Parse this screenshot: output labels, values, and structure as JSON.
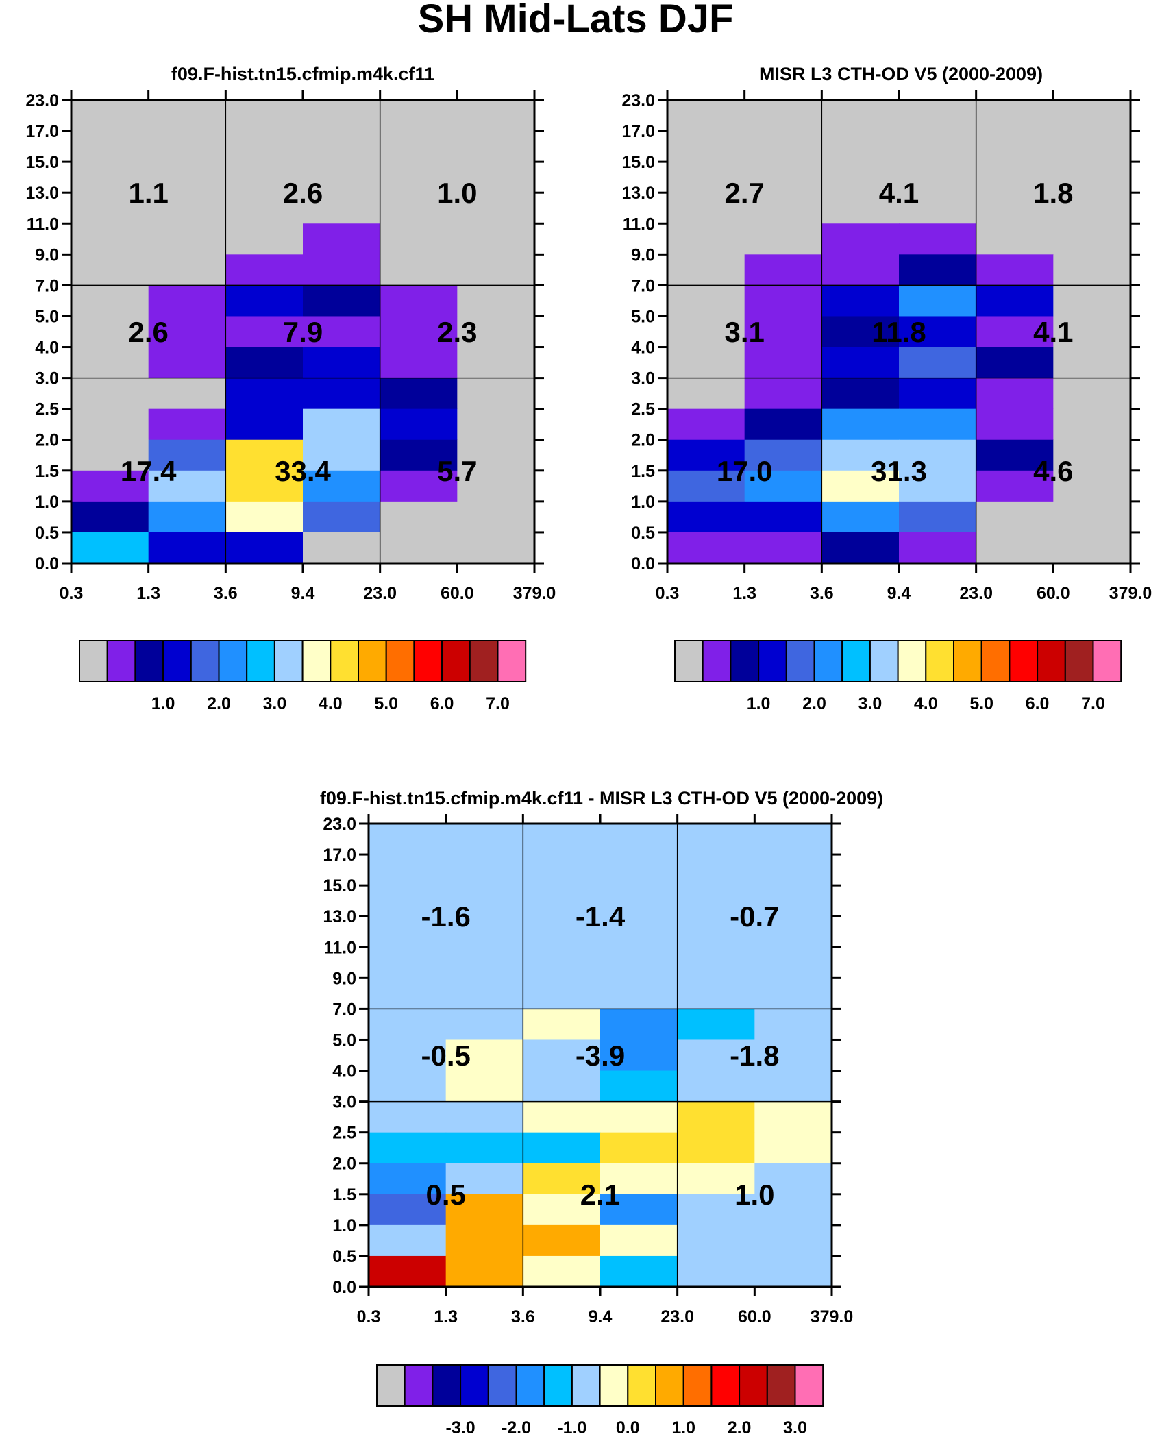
{
  "figure_title": "SH Mid-Lats DJF",
  "palette": [
    "#c8c8c8",
    "#8020e8",
    "#00009a",
    "#0000d0",
    "#3f66e0",
    "#2090ff",
    "#00c0ff",
    "#a0d0ff",
    "#ffffc8",
    "#ffe030",
    "#ffaa00",
    "#ff6e00",
    "#ff0000",
    "#cc0000",
    "#a02020",
    "#ff6eb4"
  ],
  "chart_data": [
    {
      "type": "heatmap",
      "id": "model",
      "title": "f09.F-hist.tn15.cfmip.m4k.cf11",
      "x_ticks": [
        "0.3",
        "1.3",
        "3.6",
        "9.4",
        "23.0",
        "60.0",
        "379.0"
      ],
      "y_ticks": [
        "0.0",
        "0.5",
        "1.0",
        "1.5",
        "2.0",
        "2.5",
        "3.0",
        "4.0",
        "5.0",
        "7.0",
        "9.0",
        "11.0",
        "13.0",
        "15.0",
        "17.0",
        "23.0"
      ],
      "cell_color_index_rows_top_to_bottom": [
        [
          0,
          0,
          0,
          0,
          0,
          0
        ],
        [
          0,
          0,
          0,
          0,
          0,
          0
        ],
        [
          0,
          0,
          0,
          0,
          0,
          0
        ],
        [
          0,
          0,
          0,
          0,
          0,
          0
        ],
        [
          0,
          0,
          0,
          1,
          0,
          0
        ],
        [
          0,
          0,
          1,
          1,
          0,
          0
        ],
        [
          0,
          1,
          3,
          2,
          1,
          0
        ],
        [
          0,
          1,
          1,
          1,
          1,
          0
        ],
        [
          0,
          1,
          2,
          3,
          1,
          0
        ],
        [
          0,
          0,
          3,
          3,
          2,
          0
        ],
        [
          0,
          1,
          3,
          7,
          3,
          0
        ],
        [
          0,
          4,
          9,
          7,
          2,
          0
        ],
        [
          1,
          7,
          9,
          5,
          1,
          0
        ],
        [
          2,
          5,
          8,
          4,
          0,
          0
        ],
        [
          6,
          3,
          3,
          0,
          0,
          0
        ]
      ],
      "region_labels": [
        {
          "col": 0,
          "band": "high",
          "text": "1.1"
        },
        {
          "col": 1,
          "band": "high",
          "text": "2.6"
        },
        {
          "col": 2,
          "band": "high",
          "text": "1.0"
        },
        {
          "col": 0,
          "band": "mid",
          "text": "2.6"
        },
        {
          "col": 1,
          "band": "mid",
          "text": "7.9"
        },
        {
          "col": 2,
          "band": "mid",
          "text": "2.3"
        },
        {
          "col": 0,
          "band": "low",
          "text": "17.4"
        },
        {
          "col": 1,
          "band": "low",
          "text": "33.4"
        },
        {
          "col": 2,
          "band": "low",
          "text": "5.7"
        }
      ],
      "colorbar_labels": [
        "1.0",
        "2.0",
        "3.0",
        "4.0",
        "5.0",
        "6.0",
        "7.0"
      ]
    },
    {
      "type": "heatmap",
      "id": "obs",
      "title": "MISR L3 CTH-OD V5 (2000-2009)",
      "x_ticks": [
        "0.3",
        "1.3",
        "3.6",
        "9.4",
        "23.0",
        "60.0",
        "379.0"
      ],
      "y_ticks": [
        "0.0",
        "0.5",
        "1.0",
        "1.5",
        "2.0",
        "2.5",
        "3.0",
        "4.0",
        "5.0",
        "7.0",
        "9.0",
        "11.0",
        "13.0",
        "15.0",
        "17.0",
        "23.0"
      ],
      "cell_color_index_rows_top_to_bottom": [
        [
          0,
          0,
          0,
          0,
          0,
          0
        ],
        [
          0,
          0,
          0,
          0,
          0,
          0
        ],
        [
          0,
          0,
          0,
          0,
          0,
          0
        ],
        [
          0,
          0,
          0,
          0,
          0,
          0
        ],
        [
          0,
          0,
          1,
          1,
          0,
          0
        ],
        [
          0,
          1,
          1,
          2,
          1,
          0
        ],
        [
          0,
          1,
          3,
          5,
          3,
          0
        ],
        [
          0,
          1,
          2,
          3,
          1,
          0
        ],
        [
          0,
          1,
          3,
          4,
          2,
          0
        ],
        [
          0,
          1,
          2,
          3,
          1,
          0
        ],
        [
          1,
          2,
          5,
          5,
          1,
          0
        ],
        [
          3,
          4,
          7,
          7,
          2,
          0
        ],
        [
          4,
          5,
          8,
          7,
          1,
          0
        ],
        [
          3,
          3,
          5,
          4,
          0,
          0
        ],
        [
          1,
          1,
          2,
          1,
          0,
          0
        ]
      ],
      "region_labels": [
        {
          "col": 0,
          "band": "high",
          "text": "2.7"
        },
        {
          "col": 1,
          "band": "high",
          "text": "4.1"
        },
        {
          "col": 2,
          "band": "high",
          "text": "1.8"
        },
        {
          "col": 0,
          "band": "mid",
          "text": "3.1"
        },
        {
          "col": 1,
          "band": "mid",
          "text": "11.8"
        },
        {
          "col": 2,
          "band": "mid",
          "text": "4.1"
        },
        {
          "col": 0,
          "band": "low",
          "text": "17.0"
        },
        {
          "col": 1,
          "band": "low",
          "text": "31.3"
        },
        {
          "col": 2,
          "band": "low",
          "text": "4.6"
        }
      ],
      "colorbar_labels": [
        "1.0",
        "2.0",
        "3.0",
        "4.0",
        "5.0",
        "6.0",
        "7.0"
      ]
    },
    {
      "type": "heatmap",
      "id": "diff",
      "title": "f09.F-hist.tn15.cfmip.m4k.cf11 - MISR L3 CTH-OD V5 (2000-2009)",
      "x_ticks": [
        "0.3",
        "1.3",
        "3.6",
        "9.4",
        "23.0",
        "60.0",
        "379.0"
      ],
      "y_ticks": [
        "0.0",
        "0.5",
        "1.0",
        "1.5",
        "2.0",
        "2.5",
        "3.0",
        "4.0",
        "5.0",
        "7.0",
        "9.0",
        "11.0",
        "13.0",
        "15.0",
        "17.0",
        "23.0"
      ],
      "cell_color_index_rows_top_to_bottom": [
        [
          7,
          7,
          7,
          7,
          7,
          7
        ],
        [
          7,
          7,
          7,
          7,
          7,
          7
        ],
        [
          7,
          7,
          7,
          7,
          7,
          7
        ],
        [
          7,
          7,
          7,
          7,
          7,
          7
        ],
        [
          7,
          7,
          7,
          7,
          7,
          7
        ],
        [
          7,
          7,
          7,
          7,
          7,
          7
        ],
        [
          7,
          7,
          8,
          5,
          6,
          7
        ],
        [
          7,
          8,
          7,
          5,
          7,
          7
        ],
        [
          7,
          8,
          7,
          6,
          7,
          7
        ],
        [
          7,
          7,
          8,
          8,
          9,
          8
        ],
        [
          6,
          6,
          6,
          9,
          9,
          8
        ],
        [
          5,
          7,
          9,
          8,
          8,
          7
        ],
        [
          4,
          10,
          8,
          5,
          7,
          7
        ],
        [
          7,
          10,
          10,
          8,
          7,
          7
        ],
        [
          13,
          10,
          8,
          6,
          7,
          7
        ]
      ],
      "region_labels": [
        {
          "col": 0,
          "band": "high",
          "text": "-1.6"
        },
        {
          "col": 1,
          "band": "high",
          "text": "-1.4"
        },
        {
          "col": 2,
          "band": "high",
          "text": "-0.7"
        },
        {
          "col": 0,
          "band": "mid",
          "text": "-0.5"
        },
        {
          "col": 1,
          "band": "mid",
          "text": "-3.9"
        },
        {
          "col": 2,
          "band": "mid",
          "text": "-1.8"
        },
        {
          "col": 0,
          "band": "low",
          "text": "0.5"
        },
        {
          "col": 1,
          "band": "low",
          "text": "2.1"
        },
        {
          "col": 2,
          "band": "low",
          "text": "1.0"
        }
      ],
      "colorbar_labels": [
        "-3.0",
        "-2.0",
        "-1.0",
        "0.0",
        "1.0",
        "2.0",
        "3.0"
      ]
    }
  ]
}
